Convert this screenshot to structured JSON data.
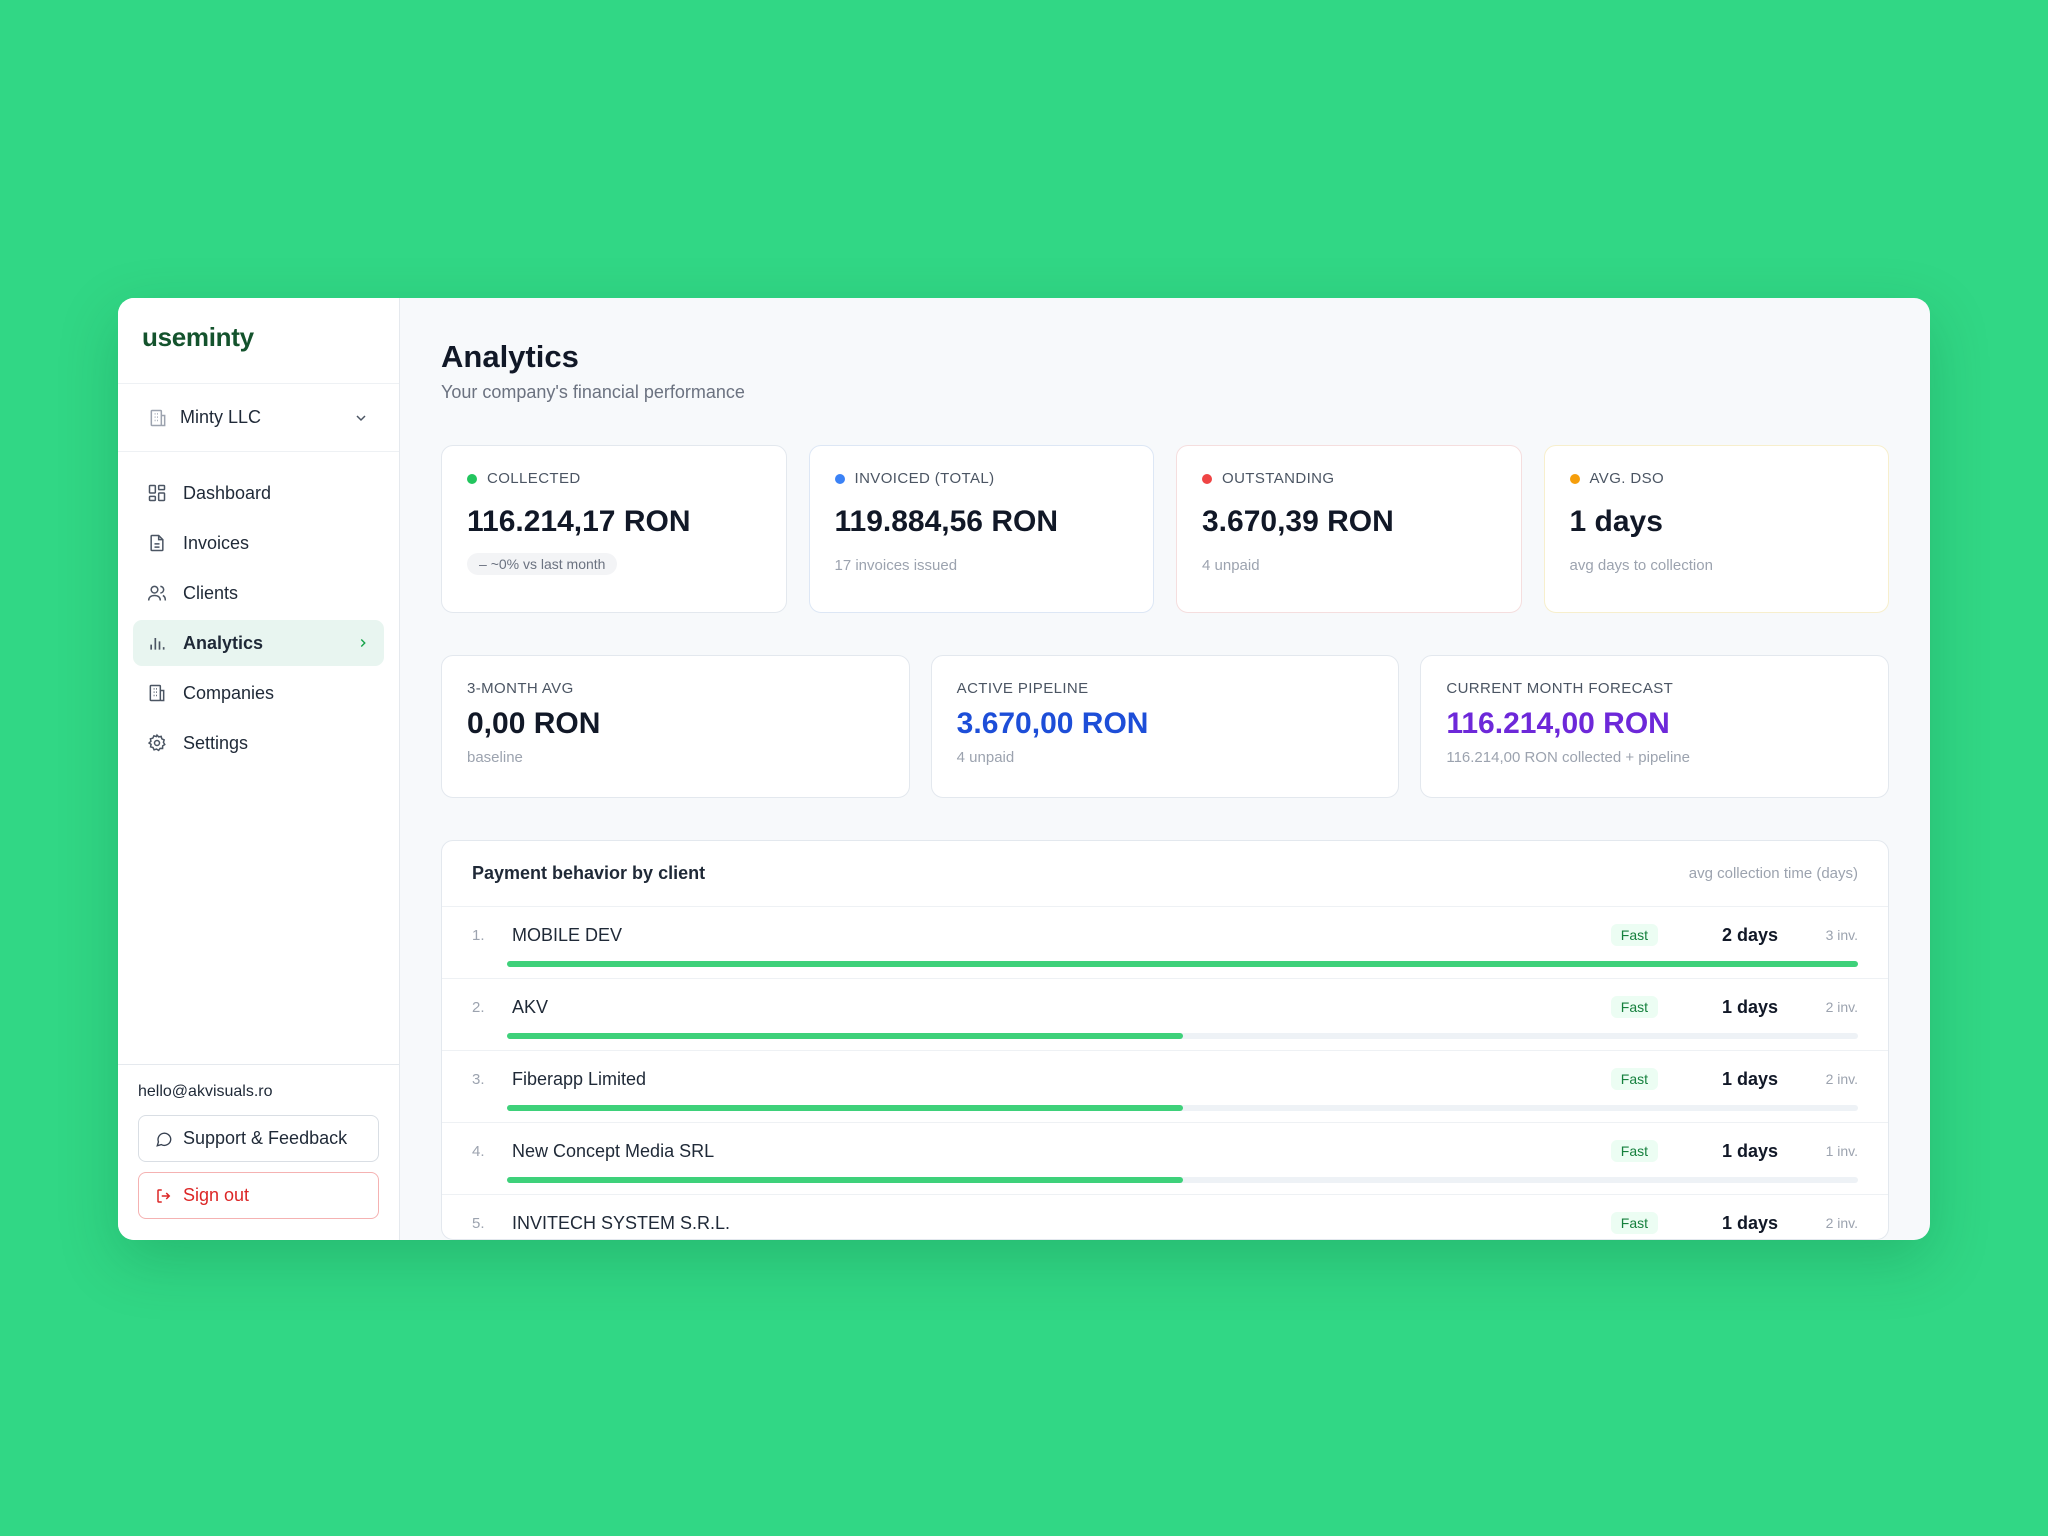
{
  "brand": {
    "name": "useminty"
  },
  "company_switch": {
    "name": "Minty LLC"
  },
  "nav": {
    "items": [
      {
        "label": "Dashboard",
        "icon": "grid-icon"
      },
      {
        "label": "Invoices",
        "icon": "file-icon"
      },
      {
        "label": "Clients",
        "icon": "users-icon"
      },
      {
        "label": "Analytics",
        "icon": "bar-chart-icon",
        "active": true
      },
      {
        "label": "Companies",
        "icon": "building-icon"
      },
      {
        "label": "Settings",
        "icon": "gear-icon"
      }
    ]
  },
  "footer": {
    "email": "hello@akvisuals.ro",
    "support_label": "Support & Feedback",
    "signout_label": "Sign out"
  },
  "page": {
    "title": "Analytics",
    "subtitle": "Your company's financial performance"
  },
  "stats": [
    {
      "label": "COLLECTED",
      "value": "116.214,17 RON",
      "note": "~0% vs last month",
      "color": "#22c55e"
    },
    {
      "label": "INVOICED (TOTAL)",
      "value": "119.884,56 RON",
      "note": "17 invoices issued",
      "color": "#3b82f6"
    },
    {
      "label": "OUTSTANDING",
      "value": "3.670,39 RON",
      "note": "4 unpaid",
      "color": "#ef4444"
    },
    {
      "label": "AVG. DSO",
      "value": "1 days",
      "note": "avg days to collection",
      "color": "#f59e0b"
    }
  ],
  "kpis": [
    {
      "label": "3-MONTH AVG",
      "value": "0,00 RON",
      "note": "baseline",
      "color": "#111827"
    },
    {
      "label": "ACTIVE PIPELINE",
      "value": "3.670,00 RON",
      "note": "4 unpaid",
      "color": "#1d4ed8"
    },
    {
      "label": "CURRENT MONTH FORECAST",
      "value": "116.214,00 RON",
      "note": "116.214,00 RON collected + pipeline",
      "color": "#6d28d9"
    }
  ],
  "payment_table": {
    "title": "Payment behavior by client",
    "hint": "avg collection time (days)",
    "rows": [
      {
        "rank": "1.",
        "name": "MOBILE DEV",
        "badge": "Fast",
        "days": "2 days",
        "invoices": "3 inv.",
        "bar_fraction": 1.0
      },
      {
        "rank": "2.",
        "name": "AKV",
        "badge": "Fast",
        "days": "1 days",
        "invoices": "2 inv.",
        "bar_fraction": 0.5
      },
      {
        "rank": "3.",
        "name": "Fiberapp Limited",
        "badge": "Fast",
        "days": "1 days",
        "invoices": "2 inv.",
        "bar_fraction": 0.5
      },
      {
        "rank": "4.",
        "name": "New Concept Media SRL",
        "badge": "Fast",
        "days": "1 days",
        "invoices": "1 inv.",
        "bar_fraction": 0.5
      },
      {
        "rank": "5.",
        "name": "INVITECH SYSTEM S.R.L.",
        "badge": "Fast",
        "days": "1 days",
        "invoices": "2 inv.",
        "bar_fraction": 0.5
      }
    ]
  },
  "colors": {
    "background": "#31d785",
    "accent": "#22c55e",
    "bar": "#3ed17a"
  }
}
